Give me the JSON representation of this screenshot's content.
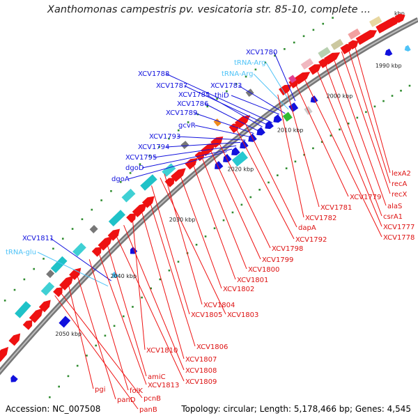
{
  "title": "Xanthomonas campestris pv. vesicatoria str. 85-10, complete ...",
  "kbp_label": "kbp",
  "footer": {
    "accession": "Accession: NC_007508",
    "topology": "Topology: circular; Length: 5,178,466 bp; Genes: 4,545"
  },
  "ticks": [
    "1990 kbp",
    "2000 kbp",
    "2010 kbp",
    "2020 kbp",
    "2030 kbp",
    "2040 kbp",
    "2050 kbp"
  ],
  "colors": {
    "backbone": "#8c8c8c",
    "reverse_genes": "#ee1111",
    "forward_genes": "#1111dd",
    "trna": "#4fc3f7",
    "tick_marks": "#2e8b2e"
  },
  "labels_upper": [
    {
      "text": "XCV1780",
      "kind": "gene"
    },
    {
      "text": "tRNA-Arg",
      "kind": "trna"
    },
    {
      "text": "tRNA-Arg",
      "kind": "trna"
    },
    {
      "text": "XCV1783",
      "kind": "gene"
    },
    {
      "text": "thiD",
      "kind": "gene"
    },
    {
      "text": "XCV1788",
      "kind": "gene"
    },
    {
      "text": "XCV1787",
      "kind": "gene"
    },
    {
      "text": "XCV1785",
      "kind": "gene"
    },
    {
      "text": "XCV1786",
      "kind": "gene"
    },
    {
      "text": "XCV1789",
      "kind": "gene"
    },
    {
      "text": "gcvR",
      "kind": "gene"
    },
    {
      "text": "XCV1793",
      "kind": "gene"
    },
    {
      "text": "XCV1794",
      "kind": "gene"
    },
    {
      "text": "XCV1795",
      "kind": "gene"
    },
    {
      "text": "dgoD",
      "kind": "gene"
    },
    {
      "text": "dgoA",
      "kind": "gene"
    },
    {
      "text": "XCV1811",
      "kind": "gene"
    },
    {
      "text": "tRNA-glu",
      "kind": "trna"
    }
  ],
  "labels_lower": [
    {
      "text": "lexA2"
    },
    {
      "text": "recA"
    },
    {
      "text": "recX"
    },
    {
      "text": "alaS"
    },
    {
      "text": "csrA1"
    },
    {
      "text": "XCV1777"
    },
    {
      "text": "XCV1778"
    },
    {
      "text": "XCV1779"
    },
    {
      "text": "XCV1781"
    },
    {
      "text": "XCV1782"
    },
    {
      "text": "dapA"
    },
    {
      "text": "XCV1792"
    },
    {
      "text": "XCV1798"
    },
    {
      "text": "XCV1799"
    },
    {
      "text": "XCV1800"
    },
    {
      "text": "XCV1801"
    },
    {
      "text": "XCV1802"
    },
    {
      "text": "XCV1804"
    },
    {
      "text": "XCV1805"
    },
    {
      "text": "XCV1803"
    },
    {
      "text": "XCV1806"
    },
    {
      "text": "XCV1810"
    },
    {
      "text": "XCV1807"
    },
    {
      "text": "XCV1808"
    },
    {
      "text": "XCV1809"
    },
    {
      "text": "amiC"
    },
    {
      "text": "XCV1813"
    },
    {
      "text": "folK"
    },
    {
      "text": "pgi"
    },
    {
      "text": "panD"
    },
    {
      "text": "pcnB"
    },
    {
      "text": "panB"
    }
  ]
}
